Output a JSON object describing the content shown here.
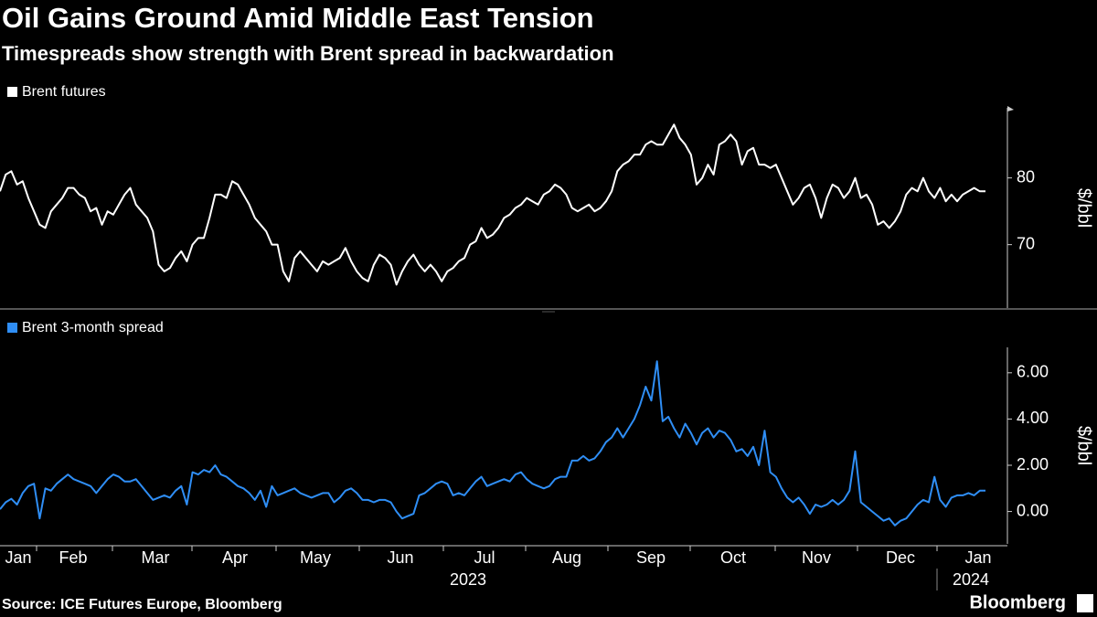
{
  "title": "Oil Gains Ground Amid Middle East Tension",
  "subtitle": "Timespreads show strength with Brent spread in backwardation",
  "source": "Source: ICE Futures Europe, Bloomberg",
  "logo": "Bloomberg",
  "x_axis": {
    "ticks": [
      "Jan",
      "Feb",
      "Mar",
      "Apr",
      "May",
      "Jun",
      "Jul",
      "Aug",
      "Sep",
      "Oct",
      "Nov",
      "Dec",
      "Jan"
    ],
    "years": [
      "2023",
      "2024"
    ]
  },
  "chart_data": [
    {
      "type": "line",
      "y_label": "$/bbl",
      "ylim": [
        60.5,
        90.5
      ],
      "yticks": [
        70,
        80
      ],
      "series": [
        {
          "name": "Brent futures",
          "color": "#ffffff",
          "values": [
            78,
            80.5,
            81,
            79,
            79.5,
            77,
            75,
            73,
            72.5,
            75,
            76,
            77,
            78.5,
            78.5,
            77.5,
            77,
            75,
            75.5,
            73,
            75,
            74.5,
            76,
            77.5,
            78.5,
            76,
            75,
            74,
            72,
            67,
            66,
            66.5,
            68,
            69,
            67.5,
            70,
            71,
            71,
            74,
            77.5,
            77.5,
            77,
            79.5,
            79,
            77.5,
            76,
            74,
            73,
            72,
            70,
            70,
            66,
            64.5,
            68,
            69,
            68,
            67,
            66,
            67.5,
            67,
            67.5,
            68,
            69.5,
            67.5,
            66,
            65,
            64.5,
            67,
            68.5,
            68,
            67,
            64,
            66,
            67.5,
            68.5,
            67,
            66,
            67,
            66,
            64.5,
            66,
            66.5,
            67.5,
            68,
            70,
            70.5,
            72.5,
            71,
            71.5,
            72.5,
            74,
            74.5,
            75.5,
            76,
            77,
            76.5,
            76,
            77.5,
            78,
            79,
            78.5,
            77.5,
            75.5,
            75,
            75.5,
            76,
            75,
            75.5,
            76.5,
            78,
            81,
            82,
            82.5,
            83.5,
            83.5,
            85,
            85.5,
            85,
            85,
            86.5,
            88,
            86,
            85,
            83.5,
            79,
            80,
            82,
            80.5,
            85,
            85.5,
            86.5,
            85.5,
            82,
            84,
            84.5,
            82,
            82,
            81.5,
            82,
            80,
            78,
            76,
            77,
            78.5,
            79,
            77,
            74,
            77,
            79,
            78.5,
            77,
            78,
            80,
            77,
            77.5,
            76,
            73,
            73.5,
            72.5,
            73.5,
            75,
            77.5,
            78.5,
            78,
            80,
            78,
            77,
            78.5,
            76.5,
            77.5,
            76.5,
            77.5,
            78,
            78.5,
            78,
            78
          ]
        }
      ]
    },
    {
      "type": "line",
      "y_label": "$/bbl",
      "ylim": [
        -1.4,
        7.1
      ],
      "yticks": [
        {
          "value": 0,
          "label": "0.00"
        },
        {
          "value": 2,
          "label": "2.00"
        },
        {
          "value": 4,
          "label": "4.00"
        },
        {
          "value": 6,
          "label": "6.00"
        }
      ],
      "series": [
        {
          "name": "Brent 3-month spread",
          "color": "#2f8ef5",
          "values": [
            0.1,
            0.4,
            0.55,
            0.3,
            0.8,
            1.1,
            1.2,
            -0.3,
            1.0,
            0.9,
            1.2,
            1.4,
            1.6,
            1.4,
            1.3,
            1.2,
            1.1,
            0.8,
            1.1,
            1.4,
            1.6,
            1.5,
            1.3,
            1.3,
            1.4,
            1.1,
            0.8,
            0.5,
            0.6,
            0.7,
            0.6,
            0.9,
            1.1,
            0.3,
            1.7,
            1.6,
            1.8,
            1.7,
            2.0,
            1.6,
            1.5,
            1.3,
            1.1,
            1.0,
            0.8,
            0.5,
            0.9,
            0.2,
            1.1,
            0.7,
            0.8,
            0.9,
            1.0,
            0.8,
            0.7,
            0.6,
            0.7,
            0.8,
            0.8,
            0.4,
            0.6,
            0.9,
            1.0,
            0.8,
            0.5,
            0.5,
            0.4,
            0.5,
            0.5,
            0.4,
            0.0,
            -0.3,
            -0.2,
            -0.1,
            0.7,
            0.8,
            1.0,
            1.2,
            1.3,
            1.2,
            0.7,
            0.8,
            0.7,
            1.0,
            1.3,
            1.5,
            1.1,
            1.2,
            1.3,
            1.4,
            1.3,
            1.6,
            1.7,
            1.4,
            1.2,
            1.1,
            1.0,
            1.1,
            1.4,
            1.5,
            1.5,
            2.2,
            2.2,
            2.4,
            2.2,
            2.3,
            2.6,
            3.0,
            3.2,
            3.6,
            3.2,
            3.6,
            4.0,
            4.6,
            5.4,
            4.8,
            6.5,
            3.9,
            4.1,
            3.6,
            3.2,
            3.8,
            3.4,
            2.9,
            3.4,
            3.6,
            3.2,
            3.5,
            3.4,
            3.1,
            2.6,
            2.7,
            2.4,
            2.8,
            2.0,
            3.5,
            1.7,
            1.5,
            1.0,
            0.6,
            0.4,
            0.6,
            0.3,
            -0.1,
            0.3,
            0.2,
            0.3,
            0.5,
            0.3,
            0.5,
            0.9,
            2.6,
            0.4,
            0.2,
            0.0,
            -0.2,
            -0.4,
            -0.3,
            -0.6,
            -0.4,
            -0.3,
            0.0,
            0.3,
            0.5,
            0.4,
            1.5,
            0.5,
            0.2,
            0.6,
            0.7,
            0.7,
            0.8,
            0.7,
            0.9,
            0.9
          ]
        }
      ]
    }
  ]
}
